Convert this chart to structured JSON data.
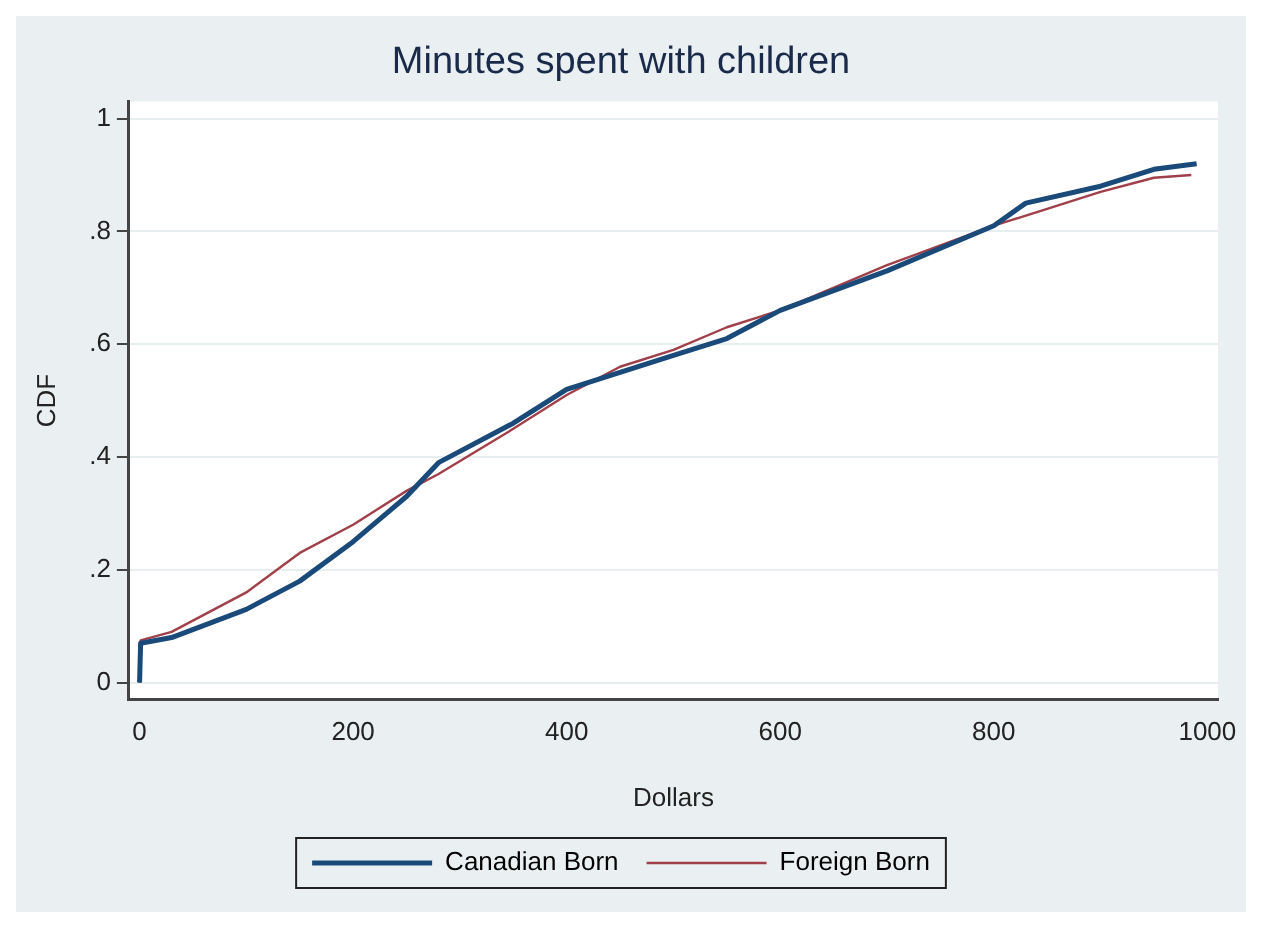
{
  "chart_data": {
    "type": "step",
    "title": "Minutes spent with children",
    "xlabel": "Dollars",
    "ylabel": "CDF",
    "xlim": [
      -10,
      1010
    ],
    "xticks": [
      0,
      200,
      400,
      600,
      800,
      1000
    ],
    "ylim": [
      -0.03,
      1.03
    ],
    "yticks": [
      {
        "value": 0,
        "label": "0"
      },
      {
        "value": 0.2,
        "label": ".2"
      },
      {
        "value": 0.4,
        "label": ".4"
      },
      {
        "value": 0.6,
        "label": ".6"
      },
      {
        "value": 0.8,
        "label": ".8"
      },
      {
        "value": 1,
        "label": "1"
      }
    ],
    "grid": "y",
    "legend": "bottom",
    "marker": "none",
    "line_style": "solid",
    "series": [
      {
        "name": "Canadian Born",
        "color": "#1a4a7a",
        "x": [
          0,
          1,
          30,
          100,
          150,
          200,
          250,
          280,
          350,
          400,
          450,
          500,
          550,
          600,
          700,
          800,
          830,
          900,
          950,
          990
        ],
        "values": [
          0,
          0.07,
          0.08,
          0.13,
          0.18,
          0.25,
          0.33,
          0.39,
          0.46,
          0.52,
          0.55,
          0.58,
          0.61,
          0.66,
          0.73,
          0.81,
          0.85,
          0.88,
          0.91,
          0.92
        ]
      },
      {
        "name": "Foreign Born",
        "color": "#a0404a",
        "x": [
          0,
          1,
          30,
          100,
          150,
          200,
          250,
          280,
          350,
          400,
          450,
          500,
          550,
          600,
          700,
          800,
          850,
          900,
          950,
          985
        ],
        "values": [
          0,
          0.075,
          0.09,
          0.16,
          0.23,
          0.28,
          0.34,
          0.37,
          0.45,
          0.51,
          0.56,
          0.59,
          0.63,
          0.66,
          0.74,
          0.81,
          0.84,
          0.87,
          0.895,
          0.9
        ]
      }
    ]
  }
}
